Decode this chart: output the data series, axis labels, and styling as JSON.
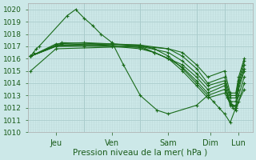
{
  "xlabel": "Pression niveau de la mer( hPa )",
  "ylim": [
    1010,
    1020.5
  ],
  "yticks": [
    1010,
    1011,
    1012,
    1013,
    1014,
    1015,
    1016,
    1017,
    1018,
    1019,
    1020
  ],
  "background_color": "#cce8e8",
  "grid_major_color": "#aacccc",
  "grid_minor_color": "#c0dcdc",
  "line_color": "#1a6b1a",
  "marker": "+",
  "day_labels": [
    "Jeu",
    "Ven",
    "Sam",
    "Dim",
    "Lun"
  ],
  "day_tick_positions": [
    0.5,
    1.5,
    2.5,
    3.25,
    3.75
  ],
  "day_vline_positions": [
    1.0,
    2.0,
    3.0,
    3.5
  ],
  "xmin": 0.0,
  "xmax": 4.0,
  "series": [
    [
      0.05,
      1016.2,
      0.1,
      1016.5,
      0.15,
      1016.8,
      0.2,
      1017.0,
      0.7,
      1019.5,
      0.85,
      1020.0,
      1.0,
      1019.3,
      1.15,
      1018.7,
      1.3,
      1018.0,
      1.5,
      1017.3,
      1.7,
      1015.5,
      2.0,
      1013.0,
      2.3,
      1011.8,
      2.5,
      1011.5,
      3.0,
      1012.2,
      3.2,
      1013.0,
      3.3,
      1012.5,
      3.4,
      1012.0,
      3.5,
      1011.5,
      3.6,
      1010.8,
      3.7,
      1012.0,
      3.85,
      1013.5
    ],
    [
      0.05,
      1016.2,
      0.5,
      1017.0,
      1.0,
      1017.1,
      1.5,
      1017.2,
      2.0,
      1017.0,
      2.25,
      1016.5,
      2.5,
      1016.0,
      2.75,
      1015.0,
      3.0,
      1013.8,
      3.2,
      1012.8,
      3.5,
      1013.2,
      3.55,
      1012.8,
      3.6,
      1012.3,
      3.65,
      1012.0,
      3.7,
      1011.8,
      3.75,
      1012.5,
      3.85,
      1014.0
    ],
    [
      0.05,
      1016.2,
      0.5,
      1017.2,
      1.0,
      1017.3,
      1.5,
      1017.2,
      2.0,
      1017.1,
      2.25,
      1016.8,
      2.5,
      1016.2,
      2.75,
      1015.2,
      3.0,
      1014.0,
      3.2,
      1013.0,
      3.5,
      1013.5,
      3.55,
      1013.0,
      3.6,
      1012.5,
      3.65,
      1012.2,
      3.7,
      1012.0,
      3.75,
      1013.0,
      3.85,
      1014.5
    ],
    [
      0.05,
      1016.2,
      0.5,
      1017.0,
      1.0,
      1017.0,
      1.5,
      1017.0,
      2.0,
      1016.8,
      2.25,
      1016.5,
      2.5,
      1016.0,
      2.75,
      1015.3,
      3.0,
      1014.2,
      3.2,
      1013.2,
      3.5,
      1013.8,
      3.6,
      1012.2,
      3.7,
      1012.2,
      3.75,
      1013.5,
      3.85,
      1015.0
    ],
    [
      0.05,
      1016.2,
      0.5,
      1017.1,
      1.0,
      1017.1,
      1.5,
      1017.0,
      2.0,
      1016.9,
      2.25,
      1016.5,
      2.5,
      1016.0,
      2.75,
      1015.5,
      3.0,
      1014.5,
      3.2,
      1013.5,
      3.5,
      1014.0,
      3.6,
      1012.5,
      3.7,
      1012.5,
      3.75,
      1013.8,
      3.85,
      1015.2
    ],
    [
      0.05,
      1016.2,
      0.6,
      1017.2,
      2.0,
      1017.0,
      2.5,
      1016.5,
      2.75,
      1015.8,
      3.0,
      1014.8,
      3.2,
      1013.8,
      3.5,
      1014.2,
      3.6,
      1012.8,
      3.7,
      1012.8,
      3.75,
      1014.0,
      3.85,
      1015.5
    ],
    [
      0.05,
      1016.2,
      0.6,
      1017.3,
      2.0,
      1017.1,
      2.5,
      1016.8,
      2.75,
      1016.2,
      3.0,
      1015.2,
      3.2,
      1014.0,
      3.5,
      1014.5,
      3.6,
      1013.0,
      3.7,
      1013.0,
      3.75,
      1014.2,
      3.85,
      1015.8
    ],
    [
      0.05,
      1015.0,
      0.5,
      1016.8,
      2.0,
      1017.0,
      2.5,
      1016.8,
      2.75,
      1016.5,
      3.0,
      1015.5,
      3.2,
      1014.5,
      3.5,
      1015.0,
      3.6,
      1013.2,
      3.7,
      1013.2,
      3.75,
      1014.5,
      3.85,
      1016.0
    ]
  ]
}
